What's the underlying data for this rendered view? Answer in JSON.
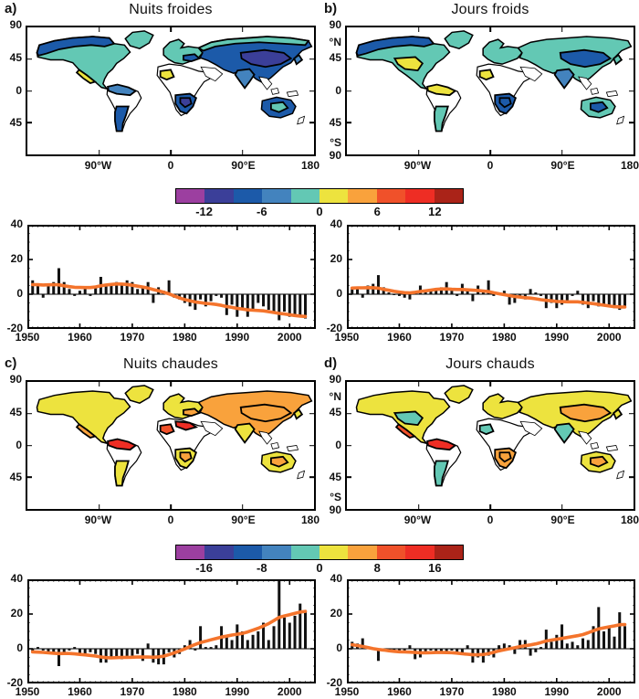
{
  "panels": [
    {
      "id": "a",
      "label": "a)",
      "title": "Nuits froides"
    },
    {
      "id": "b",
      "label": "b)",
      "title": "Jours froids"
    },
    {
      "id": "c",
      "label": "c)",
      "title": "Nuits chaudes"
    },
    {
      "id": "d",
      "label": "d)",
      "title": "Jours chauds"
    }
  ],
  "palette": {
    "P": "#9C3FA0",
    "I": "#3B3F99",
    "B": "#1C5AA9",
    "LB": "#4383BE",
    "T": "#63C8B4",
    "Y": "#EDE33E",
    "O": "#F9A23C",
    "RO": "#F0512A",
    "R": "#EE2D24",
    "DR": "#AA2318"
  },
  "map_axes": {
    "x": [
      {
        "f": 0.25,
        "t": "90°W"
      },
      {
        "f": 0.5,
        "t": "0"
      },
      {
        "f": 0.75,
        "t": "90°E"
      },
      {
        "f": 1.0,
        "t": "180"
      }
    ],
    "y_left": [
      {
        "f": 0,
        "t": "90"
      },
      {
        "f": 0.25,
        "t": "45"
      },
      {
        "f": 0.5,
        "t": "0"
      },
      {
        "f": 0.75,
        "t": "45"
      }
    ],
    "y_right": [
      {
        "f": 0,
        "t": "90"
      },
      {
        "f": 0.13,
        "t": "°N"
      },
      {
        "f": 0.25,
        "t": "45"
      },
      {
        "f": 0.5,
        "t": "0"
      },
      {
        "f": 0.75,
        "t": "45"
      },
      {
        "f": 0.9,
        "t": "°S"
      },
      {
        "f": 1,
        "t": "90"
      }
    ]
  },
  "colorbars": [
    {
      "tick_labels": [
        "-12",
        "-6",
        "0",
        "6",
        "12"
      ],
      "range": [
        -15,
        15
      ],
      "segments": [
        "P",
        "I",
        "B",
        "LB",
        "T",
        "Y",
        "O",
        "RO",
        "R",
        "DR"
      ]
    },
    {
      "tick_labels": [
        "-16",
        "-8",
        "0",
        "8",
        "16"
      ],
      "range": [
        -20,
        20
      ],
      "segments": [
        "P",
        "I",
        "B",
        "LB",
        "T",
        "Y",
        "O",
        "RO",
        "R",
        "DR"
      ]
    }
  ],
  "map_region_colors": {
    "a": {
      "greenland": "T",
      "northamerica": "T",
      "na_north_band": "B",
      "na_central_patch": null,
      "mexico_patch": "Y",
      "sa_north_edge": "LB",
      "sa_south": "B",
      "europe": "T",
      "europe_patch": "B",
      "africa_west_patch": "Y",
      "africa_north_patch": null,
      "africa_south": "B",
      "africa_south_inner": "I",
      "asia_main": "B",
      "asia_north_band": "T",
      "asia_central_patch": "I",
      "india": "LB",
      "australia": "B",
      "australia_patch": "T",
      "japan": "LB"
    },
    "b": {
      "greenland": "T",
      "northamerica": "T",
      "na_north_band": "B",
      "na_central_patch": "Y",
      "mexico_patch": null,
      "sa_north_edge": "Y",
      "sa_south": "T",
      "europe": "T",
      "europe_patch": null,
      "africa_west_patch": "Y",
      "africa_north_patch": null,
      "africa_south": "B",
      "africa_south_inner": "B",
      "asia_main": "T",
      "asia_north_band": null,
      "asia_central_patch": "B",
      "india": "LB",
      "australia": "T",
      "australia_patch": "B",
      "japan": "T"
    },
    "c": {
      "greenland": "Y",
      "northamerica": "Y",
      "na_north_band": null,
      "na_central_patch": null,
      "mexico_patch": "O",
      "sa_north_edge": "R",
      "sa_south": "Y",
      "europe": "Y",
      "europe_patch": "O",
      "africa_west_patch": "RO",
      "africa_north_patch": "R",
      "africa_south": "Y",
      "africa_south_inner": "O",
      "asia_main": "O",
      "asia_north_band": null,
      "asia_central_patch": "O",
      "india": "Y",
      "australia": "Y",
      "australia_patch": "O",
      "japan": "Y"
    },
    "d": {
      "greenland": "Y",
      "northamerica": "Y",
      "na_north_band": null,
      "na_central_patch": "T",
      "mexico_patch": "RO",
      "sa_north_edge": "R",
      "sa_south": "T",
      "europe": "Y",
      "europe_patch": null,
      "africa_west_patch": "T",
      "africa_north_patch": null,
      "africa_south": "O",
      "africa_south_inner": "O",
      "asia_main": "Y",
      "asia_north_band": null,
      "asia_central_patch": "O",
      "india": "T",
      "australia": "Y",
      "australia_patch": "O",
      "japan": "Y"
    }
  },
  "chart_data": [
    {
      "type": "bar",
      "panel": "a",
      "title": "Nuits froides",
      "x_start": 1951,
      "x_step": 1,
      "xlim": [
        1950,
        2005
      ],
      "ylim": [
        -20,
        40
      ],
      "xticks": [
        1950,
        1960,
        1970,
        1980,
        1990,
        2000
      ],
      "yticks": [
        40,
        20,
        0,
        -20
      ],
      "bar_color": "#111111",
      "line_color": "#F4742C",
      "line_label": "smoothed decadal curve",
      "values": [
        8,
        5,
        -2,
        5,
        7,
        15,
        7,
        3,
        -1,
        2,
        3,
        -1,
        4,
        10,
        6,
        5,
        7,
        6,
        8,
        7,
        3,
        4,
        7,
        -5,
        4,
        2,
        8,
        -2,
        -3,
        -5,
        -7,
        -9,
        -3,
        -7,
        -4,
        -1,
        -2,
        -12,
        -6,
        -13,
        -8,
        -13,
        -9,
        -5,
        -7,
        -9,
        -11,
        -15,
        -10,
        -13,
        -13,
        -12,
        -14
      ]
    },
    {
      "type": "bar",
      "panel": "b",
      "title": "Jours froids",
      "x_start": 1951,
      "x_step": 1,
      "xlim": [
        1950,
        2005
      ],
      "ylim": [
        -20,
        40
      ],
      "xticks": [
        1950,
        1960,
        1970,
        1980,
        1990,
        2000
      ],
      "yticks": [
        40,
        20,
        0,
        -20
      ],
      "bar_color": "#111111",
      "line_color": "#F4742C",
      "line_label": "smoothed decadal curve",
      "values": [
        3,
        4,
        -2,
        5,
        6,
        11,
        4,
        1,
        0,
        -1,
        -2,
        -3,
        1,
        5,
        2,
        2,
        3,
        4,
        7,
        2,
        -1,
        6,
        3,
        -4,
        5,
        2,
        8,
        -1,
        1,
        2,
        -6,
        -5,
        -2,
        -3,
        3,
        1,
        -1,
        -8,
        -5,
        -8,
        -6,
        -5,
        -1,
        2,
        -6,
        -8,
        -4,
        -7,
        -6,
        -7,
        -8,
        -9,
        -7
      ]
    },
    {
      "type": "bar",
      "panel": "c",
      "title": "Nuits chaudes",
      "x_start": 1951,
      "x_step": 1,
      "xlim": [
        1950,
        2005
      ],
      "ylim": [
        -20,
        40
      ],
      "xticks": [
        1950,
        1960,
        1970,
        1980,
        1990,
        2000
      ],
      "yticks": [
        40,
        20,
        0,
        -20
      ],
      "bar_color": "#111111",
      "line_color": "#F4742C",
      "line_label": "smoothed decadal curve",
      "values": [
        -2,
        1,
        -1,
        -2,
        -2,
        -10,
        -3,
        -1,
        1,
        -3,
        -4,
        -2,
        -3,
        -8,
        -8,
        -5,
        -5,
        -6,
        -5,
        -4,
        -3,
        -7,
        3,
        -8,
        -9,
        -9,
        -2,
        -5,
        -3,
        2,
        5,
        -1,
        13,
        1,
        1,
        2,
        13,
        8,
        5,
        14,
        10,
        5,
        8,
        10,
        15,
        5,
        13,
        39,
        18,
        15,
        19,
        26,
        21
      ]
    },
    {
      "type": "bar",
      "panel": "d",
      "title": "Jours chauds",
      "x_start": 1951,
      "x_step": 1,
      "xlim": [
        1950,
        2005
      ],
      "ylim": [
        -20,
        40
      ],
      "xticks": [
        1950,
        1960,
        1970,
        1980,
        1990,
        2000
      ],
      "yticks": [
        40,
        20,
        0,
        -20
      ],
      "bar_color": "#111111",
      "line_color": "#F4742C",
      "line_label": "smoothed decadal curve",
      "values": [
        4,
        3,
        6,
        1,
        0,
        -7,
        -1,
        -1,
        -1,
        -1,
        -1,
        2,
        -6,
        -5,
        -3,
        -1,
        -2,
        -2,
        -2,
        -1,
        -2,
        -3,
        2,
        -8,
        -5,
        -8,
        -4,
        -5,
        2,
        3,
        2,
        -3,
        5,
        5,
        -4,
        -2,
        1,
        11,
        4,
        8,
        14,
        3,
        4,
        2,
        6,
        5,
        13,
        24,
        10,
        12,
        7,
        21,
        13
      ]
    }
  ]
}
